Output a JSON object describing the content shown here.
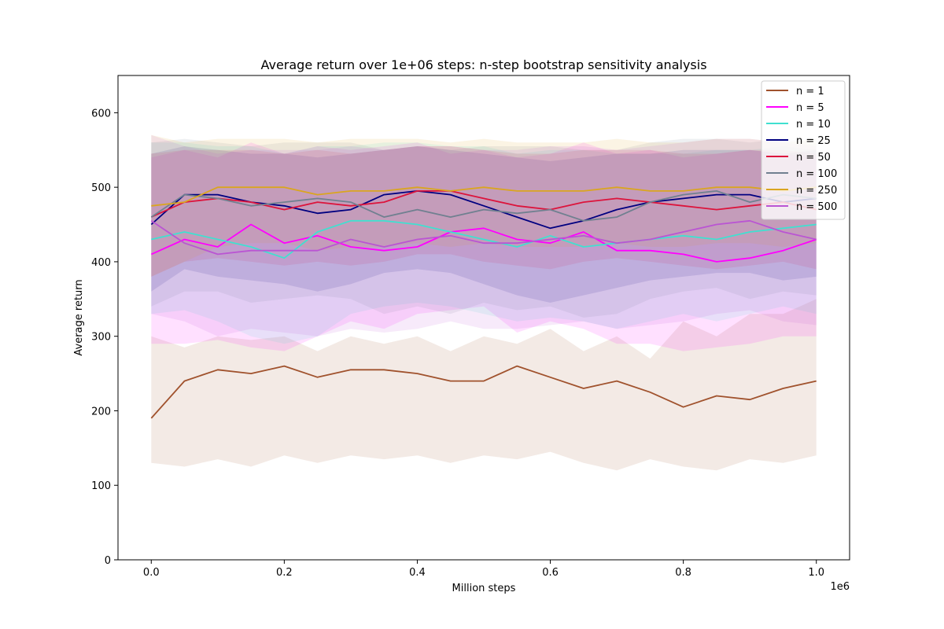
{
  "chart_data": {
    "type": "line",
    "title": "Average return over 1e+06 steps: n-step bootstrap sensitivity analysis",
    "xlabel": "Million steps",
    "ylabel": "Average return",
    "x_offset_label": "1e6",
    "xlim": [
      -50000,
      1050000
    ],
    "ylim": [
      0,
      650
    ],
    "x_ticks": [
      0,
      200000,
      400000,
      600000,
      800000,
      1000000
    ],
    "x_tick_labels": [
      "0.0",
      "0.2",
      "0.4",
      "0.6",
      "0.8",
      "1.0"
    ],
    "y_ticks": [
      0,
      100,
      200,
      300,
      400,
      500,
      600
    ],
    "y_tick_labels": [
      "0",
      "100",
      "200",
      "300",
      "400",
      "500",
      "600"
    ],
    "grid": false,
    "legend_position": "top-right",
    "x": [
      0,
      50000,
      100000,
      150000,
      200000,
      250000,
      300000,
      350000,
      400000,
      450000,
      500000,
      550000,
      600000,
      650000,
      700000,
      750000,
      800000,
      850000,
      900000,
      950000,
      1000000
    ],
    "series": [
      {
        "name": "n = 1",
        "color": "#a0522d",
        "mean": [
          190,
          240,
          255,
          250,
          260,
          245,
          255,
          255,
          250,
          240,
          240,
          260,
          245,
          230,
          240,
          225,
          205,
          220,
          215,
          230,
          240
        ],
        "lower": [
          130,
          125,
          135,
          125,
          140,
          130,
          140,
          135,
          140,
          130,
          140,
          135,
          145,
          130,
          120,
          135,
          125,
          120,
          135,
          130,
          140
        ],
        "upper": [
          300,
          285,
          300,
          295,
          300,
          280,
          300,
          290,
          300,
          280,
          300,
          290,
          310,
          280,
          300,
          270,
          320,
          300,
          330,
          330,
          350
        ]
      },
      {
        "name": "n = 5",
        "color": "#ff00ff",
        "mean": [
          410,
          430,
          420,
          450,
          425,
          435,
          420,
          415,
          420,
          440,
          445,
          430,
          425,
          440,
          415,
          415,
          410,
          400,
          405,
          415,
          430
        ],
        "lower": [
          290,
          290,
          295,
          285,
          280,
          300,
          320,
          310,
          330,
          335,
          340,
          305,
          320,
          310,
          290,
          290,
          280,
          285,
          290,
          300,
          300
        ],
        "upper": [
          540,
          550,
          540,
          560,
          545,
          555,
          550,
          555,
          560,
          545,
          550,
          540,
          545,
          560,
          545,
          550,
          540,
          545,
          550,
          545,
          540
        ]
      },
      {
        "name": "n = 10",
        "color": "#40e0d0",
        "mean": [
          430,
          440,
          430,
          420,
          405,
          440,
          455,
          455,
          450,
          440,
          430,
          420,
          435,
          420,
          425,
          430,
          435,
          430,
          440,
          445,
          450
        ],
        "lower": [
          330,
          335,
          320,
          300,
          290,
          300,
          330,
          340,
          345,
          340,
          330,
          320,
          325,
          320,
          310,
          320,
          330,
          320,
          330,
          340,
          330
        ],
        "upper": [
          560,
          560,
          555,
          555,
          545,
          555,
          555,
          560,
          560,
          555,
          555,
          545,
          550,
          550,
          545,
          545,
          545,
          550,
          550,
          555,
          550
        ]
      },
      {
        "name": "n = 25",
        "color": "#000080",
        "mean": [
          450,
          490,
          490,
          480,
          475,
          465,
          470,
          490,
          495,
          490,
          475,
          460,
          445,
          455,
          470,
          480,
          485,
          490,
          490,
          480,
          485
        ],
        "lower": [
          360,
          390,
          380,
          375,
          370,
          360,
          370,
          385,
          390,
          385,
          370,
          355,
          345,
          355,
          365,
          375,
          380,
          385,
          385,
          375,
          380
        ],
        "upper": [
          545,
          555,
          550,
          545,
          545,
          540,
          545,
          550,
          555,
          550,
          545,
          540,
          535,
          540,
          545,
          545,
          550,
          550,
          550,
          545,
          550
        ]
      },
      {
        "name": "n = 50",
        "color": "#dc143c",
        "mean": [
          460,
          480,
          485,
          480,
          470,
          480,
          475,
          480,
          495,
          495,
          485,
          475,
          470,
          480,
          485,
          480,
          475,
          470,
          475,
          480,
          470
        ],
        "lower": [
          380,
          400,
          405,
          400,
          395,
          400,
          395,
          400,
          410,
          410,
          400,
          395,
          390,
          400,
          405,
          400,
          395,
          390,
          395,
          400,
          390
        ],
        "upper": [
          545,
          550,
          550,
          550,
          545,
          550,
          545,
          550,
          555,
          555,
          550,
          545,
          545,
          550,
          550,
          550,
          545,
          545,
          550,
          550,
          545
        ]
      },
      {
        "name": "n = 100",
        "color": "#708090",
        "mean": [
          460,
          490,
          485,
          475,
          480,
          485,
          480,
          460,
          470,
          460,
          470,
          465,
          470,
          455,
          460,
          480,
          490,
          495,
          480,
          490,
          485
        ],
        "lower": [
          340,
          360,
          360,
          345,
          350,
          355,
          350,
          330,
          340,
          330,
          345,
          335,
          340,
          325,
          330,
          350,
          360,
          365,
          350,
          360,
          355
        ],
        "upper": [
          560,
          565,
          560,
          555,
          560,
          560,
          560,
          550,
          555,
          550,
          555,
          555,
          555,
          550,
          550,
          560,
          565,
          565,
          560,
          565,
          560
        ]
      },
      {
        "name": "n = 250",
        "color": "#daa520",
        "mean": [
          475,
          480,
          500,
          500,
          500,
          490,
          495,
          495,
          500,
          495,
          500,
          495,
          495,
          495,
          500,
          495,
          495,
          500,
          500,
          495,
          500
        ],
        "lower": [
          380,
          400,
          420,
          425,
          425,
          415,
          420,
          420,
          425,
          420,
          425,
          420,
          420,
          420,
          425,
          420,
          420,
          425,
          425,
          420,
          425
        ],
        "upper": [
          570,
          560,
          565,
          565,
          565,
          560,
          565,
          565,
          565,
          560,
          565,
          560,
          560,
          560,
          565,
          560,
          560,
          565,
          565,
          560,
          565
        ]
      },
      {
        "name": "n = 500",
        "color": "#ba55d3",
        "mean": [
          455,
          425,
          410,
          415,
          415,
          415,
          430,
          420,
          430,
          435,
          425,
          425,
          430,
          435,
          425,
          430,
          440,
          450,
          455,
          440,
          430
        ],
        "lower": [
          330,
          320,
          300,
          310,
          305,
          300,
          310,
          305,
          310,
          320,
          310,
          310,
          315,
          320,
          310,
          315,
          320,
          330,
          335,
          320,
          315
        ],
        "upper": [
          570,
          555,
          545,
          550,
          550,
          550,
          555,
          550,
          555,
          555,
          550,
          550,
          555,
          555,
          550,
          555,
          560,
          565,
          565,
          560,
          555
        ]
      }
    ]
  }
}
